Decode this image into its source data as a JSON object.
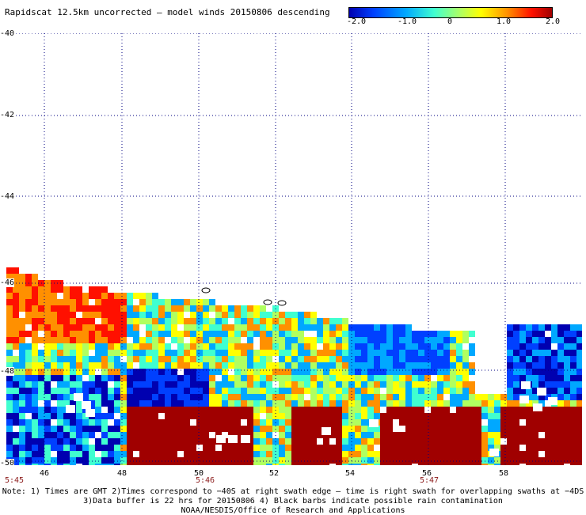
{
  "title": "Rapidscat 12.5km uncorrected — model winds 20150806 descending",
  "colorbar": {
    "labels": [
      "-2.0",
      "-1.0",
      "0",
      "1.0",
      "2.0"
    ],
    "label_values": [
      -2.0,
      -1.0,
      0,
      1.0,
      2.0
    ],
    "range": [
      -2.0,
      2.0
    ],
    "colors": [
      "#0000b0",
      "#0040ff",
      "#00a8ff",
      "#40ffd0",
      "#b0ff60",
      "#ffff00",
      "#ff9000",
      "#ff1000",
      "#a00000"
    ]
  },
  "axes": {
    "lat_labels": [
      "-40",
      "-42",
      "-44",
      "-46",
      "-48",
      "-50"
    ],
    "lon_labels": [
      "46",
      "48",
      "50",
      "52",
      "54",
      "56",
      "58"
    ],
    "time_labels": [
      "5:45",
      "5:46",
      "5:47"
    ]
  },
  "notes": [
    "Note: 1) Times are GMT 2)Times correspond to −40S at right swath edge — time is right swath for overlapping swaths at −4DS",
    "3)Data buffer is 22 hrs for 20150806 4) Black barbs indicate possible rain contamination",
    "NOAA/NESDIS/Office of Research and Applications"
  ]
}
